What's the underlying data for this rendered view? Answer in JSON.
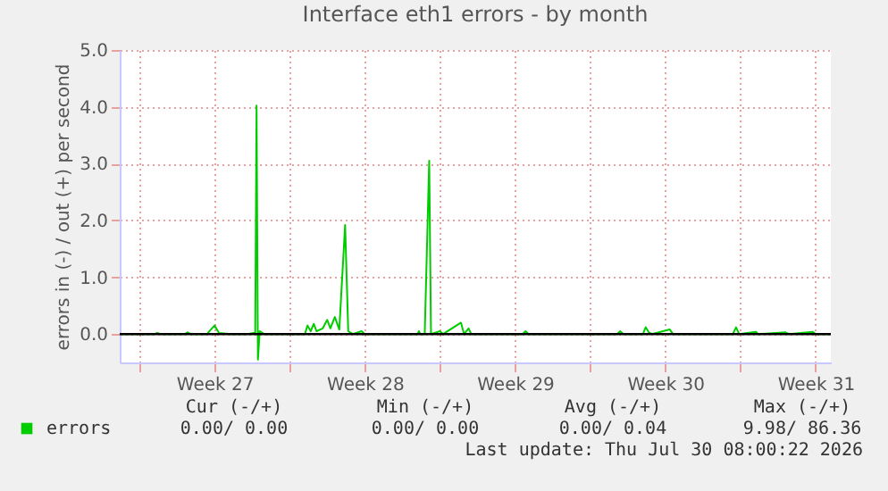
{
  "chart_data": {
    "type": "line",
    "title": "Interface eth1 errors - by month",
    "ylabel": "errors in (-) / out (+) per second",
    "x": [
      "2026-06-28T02:00",
      "2026-06-29T17:00",
      "2026-06-29T20:00",
      "2026-06-29T23:30",
      "2026-07-01T02:30",
      "2026-07-01T06:00",
      "2026-07-01T09:00",
      "2026-07-02T03:30",
      "2026-07-02T12:00",
      "2026-07-02T17:00",
      "2026-07-03T05:00",
      "2026-07-04T01:00",
      "2026-07-04T07:30",
      "2026-07-04T09:30",
      "2026-07-04T11:00",
      "2026-07-04T12:30",
      "2026-07-04T14:30",
      "2026-07-04T19:30",
      "2026-07-06T17:00",
      "2026-07-06T20:00",
      "2026-07-06T23:30",
      "2026-07-07T03:00",
      "2026-07-07T06:00",
      "2026-07-07T13:00",
      "2026-07-07T18:00",
      "2026-07-07T21:30",
      "2026-07-08T02:30",
      "2026-07-08T07:30",
      "2026-07-08T14:00",
      "2026-07-08T17:30",
      "2026-07-08T22:30",
      "2026-07-09T08:30",
      "2026-07-09T12:00",
      "2026-07-11T23:00",
      "2026-07-12T00:30",
      "2026-07-12T02:00",
      "2026-07-12T07:00",
      "2026-07-12T12:00",
      "2026-07-12T14:00",
      "2026-07-13T00:00",
      "2026-07-13T03:30",
      "2026-07-13T23:30",
      "2026-07-14T03:00",
      "2026-07-14T08:00",
      "2026-07-14T11:00",
      "2026-07-16T20:30",
      "2026-07-16T23:45",
      "2026-07-17T03:00",
      "2026-07-21T06:00",
      "2026-07-21T09:30",
      "2026-07-21T13:00",
      "2026-07-22T11:00",
      "2026-07-22T14:00",
      "2026-07-22T17:30",
      "2026-07-22T21:00",
      "2026-07-23T17:00",
      "2026-07-23T20:30",
      "2026-07-26T15:30",
      "2026-07-26T19:00",
      "2026-07-26T22:30",
      "2026-07-27T17:00",
      "2026-07-27T20:00",
      "2026-07-29T02:30",
      "2026-07-29T06:00",
      "2026-07-30T08:30",
      "2026-07-30T12:00",
      "2026-07-31T05:00"
    ],
    "series": [
      {
        "name": "errors",
        "color": "#00cc00",
        "values": [
          0,
          0,
          0.02,
          0,
          0,
          0.03,
          0,
          0,
          0.15,
          0.02,
          0,
          0,
          0.02,
          0,
          4.02,
          -0.45,
          0.05,
          0,
          0,
          0.15,
          0.05,
          0.18,
          0.05,
          0.1,
          0.25,
          0.1,
          0.3,
          0.08,
          1.92,
          0.05,
          0,
          0.05,
          0,
          0,
          0.05,
          0,
          0,
          3.05,
          0,
          0.05,
          0,
          0.2,
          0,
          0.1,
          0,
          0,
          0.05,
          0,
          0,
          0.05,
          0,
          0,
          0.12,
          0.03,
          0,
          0.08,
          0,
          0,
          0.12,
          0,
          0.04,
          0,
          0.03,
          0,
          0.04,
          0,
          0
        ]
      }
    ],
    "xlim": [
      "2026-06-28T02:00",
      "2026-07-31T05:00"
    ],
    "xticks": [
      {
        "value": "2026-06-29",
        "label": null
      },
      {
        "value": "2026-07-02T12:00",
        "label": "Week 27"
      },
      {
        "value": "2026-07-06",
        "label": null
      },
      {
        "value": "2026-07-09T12:00",
        "label": "Week 28"
      },
      {
        "value": "2026-07-13",
        "label": null
      },
      {
        "value": "2026-07-16T12:00",
        "label": "Week 29"
      },
      {
        "value": "2026-07-20",
        "label": null
      },
      {
        "value": "2026-07-23T12:00",
        "label": "Week 30"
      },
      {
        "value": "2026-07-27",
        "label": null
      },
      {
        "value": "2026-07-30T12:00",
        "label": "Week 31"
      }
    ],
    "ylim": [
      -0.5,
      5.0
    ],
    "yticks": [
      {
        "value": 0,
        "label": "0.0"
      },
      {
        "value": 1,
        "label": "1.0"
      },
      {
        "value": 2,
        "label": "2.0"
      },
      {
        "value": 3,
        "label": "3.0"
      },
      {
        "value": 4,
        "label": "4.0"
      },
      {
        "value": 5,
        "label": "5.0"
      }
    ],
    "ref_lines": [
      {
        "axis": "y",
        "value": 0,
        "label": null,
        "color": "#000000"
      }
    ],
    "grid": true,
    "legend": "bottom left",
    "marker": "none",
    "line_style": "solid",
    "annotations": [
      "Cur (-/+)",
      "Min (-/+)",
      "Avg (-/+)",
      "Max (-/+)",
      "0.00/   0.00",
      "0.00/   0.00",
      "0.00/   0.04",
      "9.98/  86.36",
      "Last update: Thu Jul 30 08:00:22 2026"
    ]
  }
}
